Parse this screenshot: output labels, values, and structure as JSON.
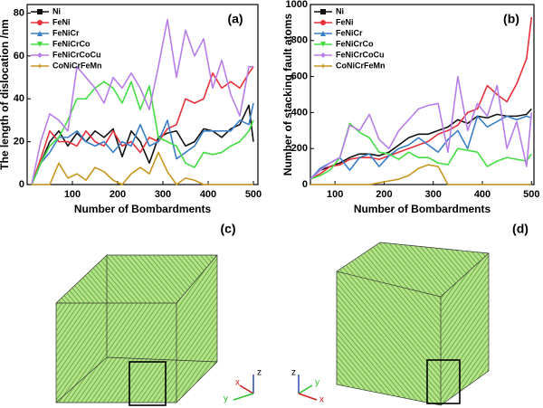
{
  "chart_data": [
    {
      "type": "line",
      "title": "(a)",
      "xlabel": "Number  of  Bombardments",
      "ylabel": "The length of dislocation /nm",
      "x": [
        10,
        30,
        50,
        70,
        90,
        110,
        130,
        150,
        170,
        190,
        210,
        230,
        250,
        270,
        290,
        310,
        330,
        350,
        370,
        390,
        410,
        430,
        450,
        470,
        490,
        500
      ],
      "xlim": [
        0,
        510
      ],
      "xticks": [
        100,
        200,
        300,
        400,
        500
      ],
      "ylim": [
        0,
        84
      ],
      "yticks": [
        0,
        20,
        40,
        60,
        80
      ],
      "legend": "upper left",
      "series": [
        {
          "name": "Ni",
          "color": "#111111",
          "marker": "square",
          "values": [
            0,
            10,
            20,
            25,
            18,
            24,
            20,
            25,
            22,
            26,
            13,
            25,
            20,
            10,
            22,
            24,
            25,
            18,
            20,
            26,
            25,
            22,
            26,
            28,
            37,
            20
          ]
        },
        {
          "name": "FeNi",
          "color": "#e8303a",
          "marker": "circle",
          "values": [
            0,
            12,
            25,
            20,
            20,
            18,
            25,
            20,
            18,
            25,
            18,
            20,
            15,
            22,
            20,
            26,
            28,
            40,
            38,
            40,
            52,
            45,
            48,
            45,
            52,
            55
          ]
        },
        {
          "name": "FeNiCr",
          "color": "#3a7ec8",
          "marker": "triangle",
          "values": [
            0,
            10,
            15,
            22,
            22,
            25,
            20,
            18,
            20,
            15,
            20,
            18,
            28,
            18,
            20,
            30,
            12,
            15,
            18,
            25,
            25,
            25,
            25,
            30,
            28,
            38
          ]
        },
        {
          "name": "FeNiCrCo",
          "color": "#44dd44",
          "marker": "triangle-down",
          "values": [
            0,
            10,
            18,
            22,
            30,
            40,
            40,
            45,
            48,
            45,
            38,
            48,
            35,
            46,
            22,
            20,
            18,
            10,
            8,
            15,
            14,
            15,
            18,
            20,
            25,
            30
          ]
        },
        {
          "name": "FeNiCrCoCu",
          "color": "#b77ee8",
          "marker": "diamond",
          "values": [
            0,
            20,
            33,
            30,
            25,
            55,
            50,
            45,
            38,
            50,
            45,
            52,
            45,
            35,
            55,
            77,
            50,
            72,
            60,
            68,
            45,
            58,
            42,
            32,
            55,
            55
          ]
        },
        {
          "name": "CoNiCrFeMn",
          "color": "#c8961e",
          "marker": "star",
          "values": [
            0,
            0,
            0,
            10,
            3,
            5,
            2,
            8,
            6,
            2,
            0,
            5,
            8,
            5,
            15,
            6,
            0,
            3,
            2,
            0,
            0,
            0,
            0,
            0,
            0,
            0
          ]
        }
      ]
    },
    {
      "type": "line",
      "title": "(b)",
      "xlabel": "Number  of  Bombardments",
      "ylabel": "Number of stacking fault atoms",
      "x": [
        50,
        70,
        90,
        110,
        130,
        150,
        170,
        190,
        210,
        230,
        250,
        270,
        290,
        310,
        330,
        350,
        370,
        390,
        410,
        430,
        450,
        470,
        490,
        500
      ],
      "xlim": [
        50,
        505
      ],
      "xticks": [
        100,
        200,
        300,
        400,
        500
      ],
      "ylim": [
        0,
        1000
      ],
      "yticks": [
        0,
        200,
        400,
        600,
        800,
        1000
      ],
      "legend": "upper left",
      "series": [
        {
          "name": "Ni",
          "color": "#111111",
          "marker": "square",
          "values": [
            30,
            80,
            100,
            120,
            150,
            170,
            170,
            160,
            180,
            220,
            260,
            280,
            280,
            300,
            320,
            360,
            340,
            380,
            370,
            390,
            380,
            380,
            390,
            420
          ]
        },
        {
          "name": "FeNi",
          "color": "#e8303a",
          "marker": "circle",
          "values": [
            30,
            60,
            100,
            110,
            140,
            150,
            150,
            140,
            160,
            180,
            200,
            220,
            240,
            280,
            300,
            330,
            400,
            420,
            550,
            500,
            460,
            560,
            700,
            930
          ]
        },
        {
          "name": "FeNiCr",
          "color": "#3a7ec8",
          "marker": "triangle",
          "values": [
            30,
            90,
            120,
            150,
            80,
            150,
            170,
            100,
            160,
            200,
            220,
            260,
            220,
            180,
            250,
            300,
            200,
            380,
            320,
            350,
            380,
            360,
            380,
            370
          ]
        },
        {
          "name": "FeNiCrCo",
          "color": "#44dd44",
          "marker": "triangle-down",
          "values": [
            30,
            50,
            80,
            150,
            340,
            290,
            260,
            180,
            170,
            140,
            180,
            150,
            150,
            120,
            110,
            200,
            190,
            180,
            100,
            130,
            150,
            140,
            130,
            170
          ]
        },
        {
          "name": "FeNiCrCoCu",
          "color": "#b77ee8",
          "marker": "diamond",
          "values": [
            30,
            80,
            120,
            150,
            330,
            300,
            390,
            250,
            200,
            300,
            360,
            420,
            440,
            450,
            180,
            600,
            300,
            450,
            380,
            550,
            200,
            350,
            100,
            400
          ]
        },
        {
          "name": "CoNiCrFeMn",
          "color": "#c8961e",
          "marker": "star",
          "values": [
            0,
            0,
            0,
            0,
            0,
            0,
            0,
            10,
            20,
            30,
            50,
            90,
            110,
            100,
            0,
            0,
            0,
            0,
            0,
            0,
            0,
            0,
            0,
            0
          ]
        }
      ]
    }
  ],
  "images": [
    {
      "label": "(c)",
      "axes": {
        "z": "z",
        "x": "x",
        "y": "y"
      }
    },
    {
      "label": "(d)",
      "axes": {
        "z": "z",
        "x": "x",
        "y": "y"
      }
    }
  ]
}
